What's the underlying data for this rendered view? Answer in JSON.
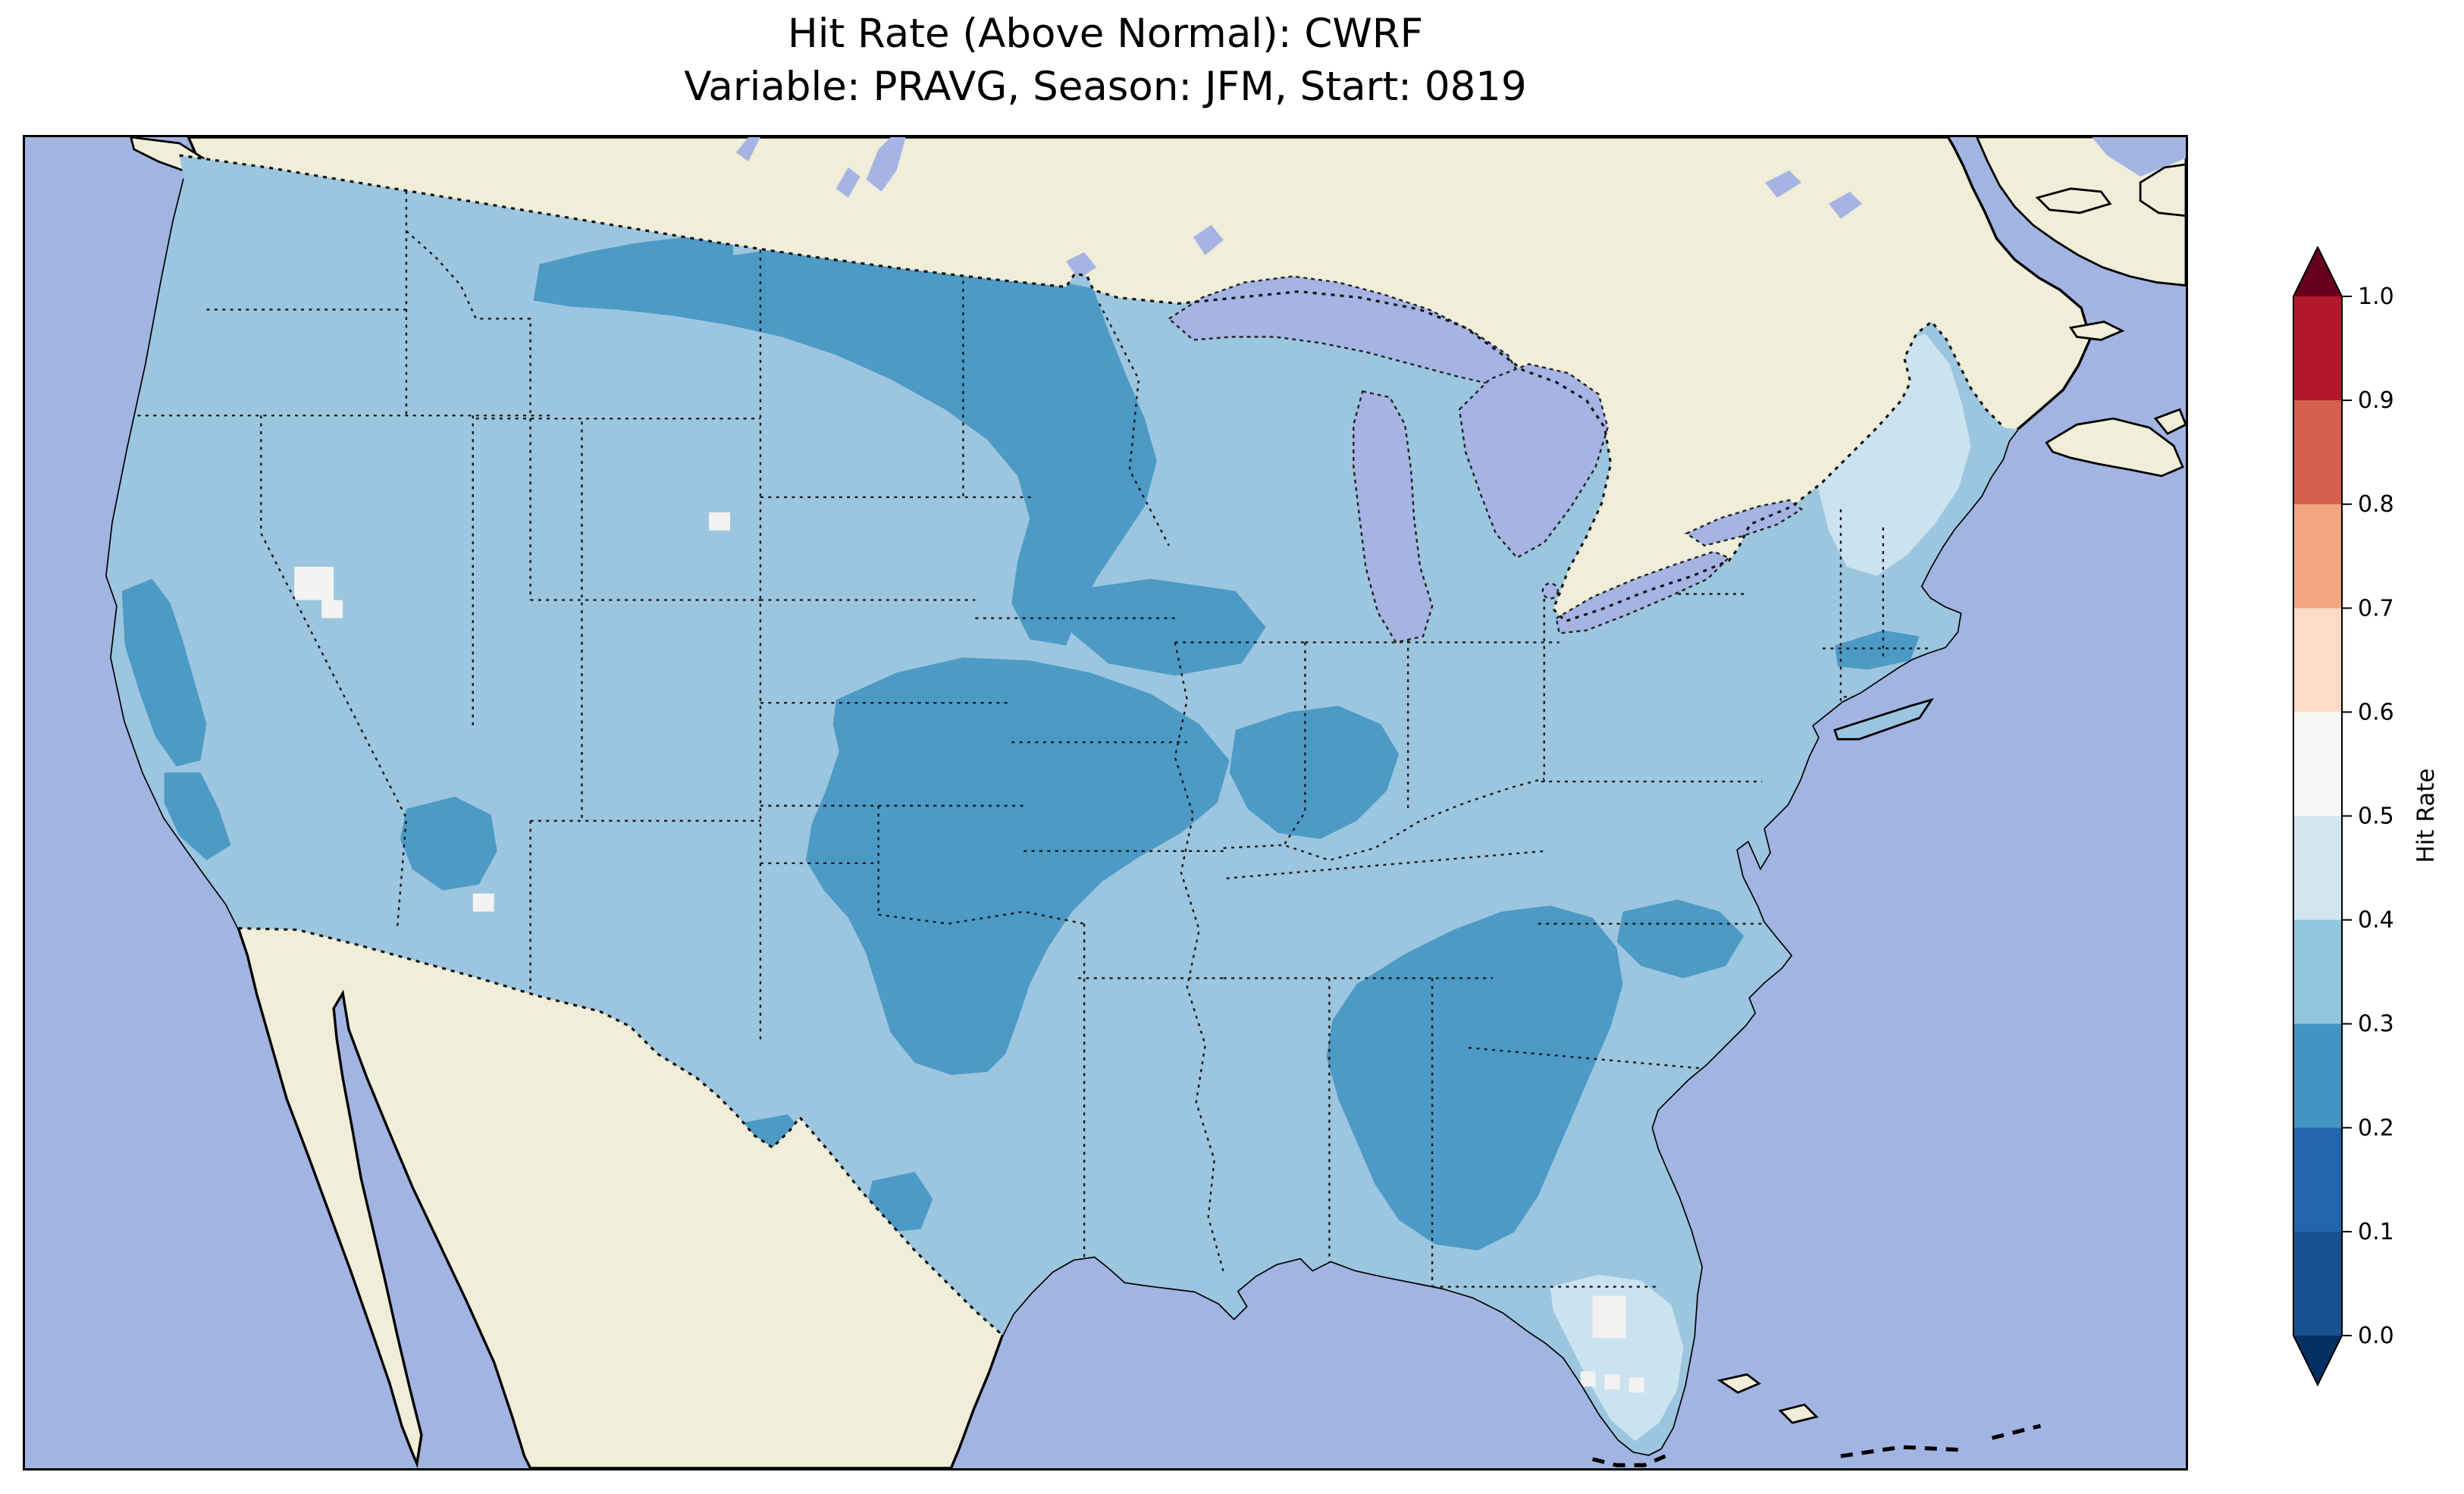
{
  "figure": {
    "title_line1": "Hit Rate (Above Normal): CWRF",
    "title_line2": "Variable: PRAVG, Season: JFM, Start: 0819"
  },
  "colorbar": {
    "label": "Hit Rate",
    "ticks": [
      "1.0",
      "0.9",
      "0.8",
      "0.7",
      "0.6",
      "0.5",
      "0.4",
      "0.3",
      "0.2",
      "0.1",
      "0.0"
    ],
    "segments": [
      {
        "range": "0.9-1.0",
        "color": "#B2182B"
      },
      {
        "range": "0.8-0.9",
        "color": "#D6604D"
      },
      {
        "range": "0.7-0.8",
        "color": "#F4A582"
      },
      {
        "range": "0.6-0.7",
        "color": "#FDDBC7"
      },
      {
        "range": "0.5-0.6",
        "color": "#F7F7F5"
      },
      {
        "range": "0.4-0.5",
        "color": "#D1E5F0"
      },
      {
        "range": "0.3-0.4",
        "color": "#92C5DE"
      },
      {
        "range": "0.2-0.3",
        "color": "#4393C3"
      },
      {
        "range": "0.1-0.2",
        "color": "#2166AC"
      },
      {
        "range": "0.0-0.1",
        "color": "#17518F"
      }
    ],
    "over_color": "#67001F",
    "under_color": "#053061"
  },
  "map": {
    "colors": {
      "ocean": "#A2B4E2",
      "land": "#F0EDD8",
      "lake": "#A6B4E4",
      "base": "#9CC6DF",
      "dark": "#4D9AC6",
      "lighter": "#CBE2EF",
      "lightest": "#F2F2F0"
    }
  },
  "chart_data": {
    "type": "heatmap",
    "title": "Hit Rate (Above Normal): CWRF",
    "subtitle": "Variable: PRAVG, Season: JFM, Start: 0819",
    "metric": "Hit Rate (Above Normal)",
    "model": "CWRF",
    "variable": "PRAVG",
    "season": "JFM",
    "start": "0819",
    "colorbar_label": "Hit Rate",
    "colorbar_range": [
      0.0,
      1.0
    ],
    "colorbar_ticks": [
      0.0,
      0.1,
      0.2,
      0.3,
      0.4,
      0.5,
      0.6,
      0.7,
      0.8,
      0.9,
      1.0
    ],
    "colormap": "RdBu reversed (dark blue low to dark red high), discrete 0.1 bins with under/over arrow extensions",
    "geography": "Contiguous United States, gridded model cells over a North America map",
    "region_values": [
      {
        "region": "Most of contiguous US",
        "hit_rate_bin": [
          0.3,
          0.4
        ]
      },
      {
        "region": "Northern Montana to North Dakota border band",
        "hit_rate_bin": [
          0.2,
          0.3
        ]
      },
      {
        "region": "Eastern Dakotas / Minnesota south into Iowa",
        "hit_rate_bin": [
          0.2,
          0.3
        ]
      },
      {
        "region": "Kansas / Missouri / Oklahoma / Arkansas",
        "hit_rate_bin": [
          0.2,
          0.3
        ]
      },
      {
        "region": "Ohio Valley (southern Indiana / Kentucky)",
        "hit_rate_bin": [
          0.2,
          0.3
        ]
      },
      {
        "region": "Georgia / western Carolinas / eastern Alabama",
        "hit_rate_bin": [
          0.2,
          0.3
        ]
      },
      {
        "region": "Coastal North Carolina",
        "hit_rate_bin": [
          0.2,
          0.3
        ]
      },
      {
        "region": "Central California coast",
        "hit_rate_bin": [
          0.2,
          0.3
        ]
      },
      {
        "region": "Central Arizona",
        "hit_rate_bin": [
          0.2,
          0.3
        ]
      },
      {
        "region": "Scattered west-central Texas cells",
        "hit_rate_bin": [
          0.2,
          0.3
        ]
      },
      {
        "region": "Massachusetts / southern New England",
        "hit_rate_bin": [
          0.2,
          0.3
        ]
      },
      {
        "region": "Northern New England (Maine / Vermont / New Hampshire)",
        "hit_rate_bin": [
          0.4,
          0.5
        ]
      },
      {
        "region": "Florida peninsula",
        "hit_rate_bin": [
          0.4,
          0.5
        ]
      },
      {
        "region": "Central Florida cells",
        "hit_rate_bin": [
          0.5,
          0.6
        ]
      },
      {
        "region": "Northwest Nevada cells",
        "hit_rate_bin": [
          0.5,
          0.6
        ]
      },
      {
        "region": "Western South Dakota single cell",
        "hit_rate_bin": [
          0.5,
          0.6
        ]
      }
    ]
  }
}
